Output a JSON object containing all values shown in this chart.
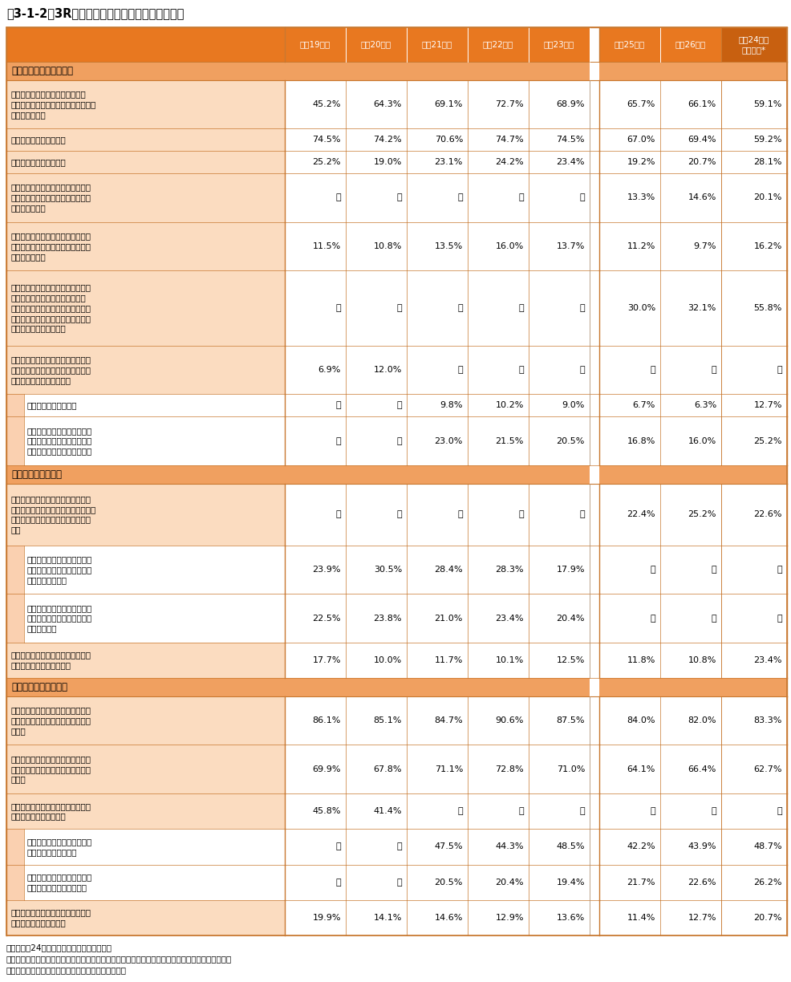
{
  "title": "表3-1-2　3Rに関する主要な具体的行動例の変化",
  "header_bg": "#E87820",
  "header_last_bg": "#C86010",
  "section_bg": "#F0A060",
  "item_bg": "#FADADC",
  "item_bg2": "#FAD0B0",
  "subitem_strip_bg": "#FAD0B0",
  "subitem_inner_bg": "#FFFFFF",
  "data_bg": "#FFFFFF",
  "border_color": "#C87830",
  "gap_bg": "#FFFFFF",
  "header_text_color": "#FFFFFF",
  "section_text_color": "#000000",
  "data_text_color": "#000000",
  "columns_left": [
    "平成19年度",
    "平成20年度",
    "平成21年度",
    "平成22年度",
    "平成23年度"
  ],
  "columns_right": [
    "平成25年度",
    "平成26年度"
  ],
  "column_last": "平成24年度\n世論調査*",
  "rows": [
    {
      "type": "section",
      "label": "発生抑制（リデュース）",
      "v": [
        "",
        "",
        "",
        "",
        "",
        "",
        "",
        ""
      ]
    },
    {
      "type": "item",
      "label": "レジ袋をもらわないようにしたり\n（買い物袋を持参する）、簡易包装を\n店に求めている",
      "nlines": 3,
      "v": [
        "45.2%",
        "64.3%",
        "69.1%",
        "72.7%",
        "68.9%",
        "65.7%",
        "66.1%",
        "59.1%"
      ]
    },
    {
      "type": "item",
      "label": "詰め替え製品をよく使う",
      "nlines": 1,
      "v": [
        "74.5%",
        "74.2%",
        "70.6%",
        "74.7%",
        "74.5%",
        "67.0%",
        "69.4%",
        "59.2%"
      ]
    },
    {
      "type": "item",
      "label": "使い捨て製品を買わない",
      "nlines": 1,
      "v": [
        "25.2%",
        "19.0%",
        "23.1%",
        "24.2%",
        "23.4%",
        "19.2%",
        "20.7%",
        "28.1%"
      ]
    },
    {
      "type": "item",
      "label": "無駄な製品をできるだけ買わないよ\nう、レンタル・リースの製品を使う\nようにしている",
      "nlines": 3,
      "v": [
        "－",
        "－",
        "－",
        "－",
        "－",
        "13.3%",
        "14.6%",
        "20.1%"
      ]
    },
    {
      "type": "item",
      "label": "簡易包装に取り組んでいたり、使い\n捨て食器類（割り箸等）を使用して\nいない店を選ぶ",
      "nlines": 3,
      "v": [
        "11.5%",
        "10.8%",
        "13.5%",
        "16.0%",
        "13.7%",
        "11.2%",
        "9.7%",
        "16.2%"
      ]
    },
    {
      "type": "item",
      "label": "買い過ぎ、作り過ぎをせず、生ごみ\nを少なくするなどの料理法（エコ\nクッキング）の実践や消費期限切れ\nなどの食品を出さないなど、食品を\n捨てないようにしている",
      "nlines": 5,
      "v": [
        "－",
        "－",
        "－",
        "－",
        "－",
        "30.0%",
        "32.1%",
        "55.8%"
      ]
    },
    {
      "type": "item",
      "label": "マイ箸を携帯して割り箸をもらわな\nいようにしたり、使い捨て型食器類\nを使わないようにしている",
      "nlines": 3,
      "v": [
        "6.9%",
        "12.0%",
        "－",
        "－",
        "－",
        "－",
        "－",
        "－"
      ]
    },
    {
      "type": "subitem",
      "label": "マイ箸を携帯している",
      "nlines": 1,
      "v": [
        "－",
        "－",
        "9.8%",
        "10.2%",
        "9.0%",
        "6.7%",
        "6.3%",
        "12.7%"
      ]
    },
    {
      "type": "subitem",
      "label": "ペットボトルなどの使い捨て\n型飲料容器や、使い捨て食器\n類を使わないようにしている",
      "nlines": 3,
      "v": [
        "－",
        "－",
        "23.0%",
        "21.5%",
        "20.5%",
        "16.8%",
        "16.0%",
        "25.2%"
      ]
    },
    {
      "type": "section",
      "label": "再使用（リユース）",
      "v": [
        "",
        "",
        "",
        "",
        "",
        "",
        "",
        ""
      ]
    },
    {
      "type": "item",
      "label": "不用品を、中古品を扱う店やバザー\nやフリーマーケット、インターネット\nオークションなどを利用して売って\nいる",
      "nlines": 4,
      "v": [
        "－",
        "－",
        "－",
        "－",
        "－",
        "22.4%",
        "25.2%",
        "22.6%"
      ]
    },
    {
      "type": "subitem",
      "label": "インターネットオークション\nに出品したり、落札したりす\nるようにしている",
      "nlines": 3,
      "v": [
        "23.9%",
        "30.5%",
        "28.4%",
        "28.3%",
        "17.9%",
        "－",
        "－",
        "－"
      ]
    },
    {
      "type": "subitem",
      "label": "中古品を扱う店やバザーやフ\nリーマーケットで売買するよ\nうにしている",
      "nlines": 3,
      "v": [
        "22.5%",
        "23.8%",
        "21.0%",
        "23.4%",
        "20.4%",
        "－",
        "－",
        "－"
      ]
    },
    {
      "type": "item",
      "label": "ビールや牛乳のびんなど再使用可能\nな容器を使った製品を買う",
      "nlines": 2,
      "v": [
        "17.7%",
        "10.0%",
        "11.7%",
        "10.1%",
        "12.5%",
        "11.8%",
        "10.8%",
        "23.4%"
      ]
    },
    {
      "type": "section",
      "label": "再利用（リサイクル）",
      "v": [
        "",
        "",
        "",
        "",
        "",
        "",
        "",
        ""
      ]
    },
    {
      "type": "item",
      "label": "家庭で出たごみはきちんと種類ごと\nに分別して、定められた場所に出し\nている",
      "nlines": 3,
      "v": [
        "86.1%",
        "85.1%",
        "84.7%",
        "90.6%",
        "87.5%",
        "84.0%",
        "82.0%",
        "83.3%"
      ]
    },
    {
      "type": "item",
      "label": "リサイクルしやすいように、資源ご\nみとして回収されるびんなどは洗っ\nている",
      "nlines": 3,
      "v": [
        "69.9%",
        "67.8%",
        "71.1%",
        "72.8%",
        "71.0%",
        "64.1%",
        "66.4%",
        "62.7%"
      ]
    },
    {
      "type": "item",
      "label": "スーパーのトレイや携帯電話など、\n店頭回収に協力している",
      "nlines": 2,
      "v": [
        "45.8%",
        "41.4%",
        "－",
        "－",
        "－",
        "－",
        "－",
        "－"
      ]
    },
    {
      "type": "subitem",
      "label": "トレイや牛乳パックなどの店\n頭回収に協力している",
      "nlines": 2,
      "v": [
        "－",
        "－",
        "47.5%",
        "44.3%",
        "48.5%",
        "42.2%",
        "43.9%",
        "48.7%"
      ]
    },
    {
      "type": "subitem",
      "label": "携帯電話などの小型電子機器\nの店頭回収に協力している",
      "nlines": 2,
      "v": [
        "－",
        "－",
        "20.5%",
        "20.4%",
        "19.4%",
        "21.7%",
        "22.6%",
        "26.2%"
      ]
    },
    {
      "type": "item",
      "label": "再生原料で作られたリサイクル製品\nを積極的に購入している",
      "nlines": 2,
      "v": [
        "19.9%",
        "14.1%",
        "14.6%",
        "12.9%",
        "13.6%",
        "11.4%",
        "12.7%",
        "20.7%"
      ]
    }
  ],
  "footnotes": [
    "注１：平成24年度はアンケートを実施せず。",
    "　２：設問・選択肢の文章が完全に一致はしていない項目もあるが、類似・同一内容の設問で比較。",
    "資料：環境省、内閣府「環境問題に関する世論調査」"
  ]
}
